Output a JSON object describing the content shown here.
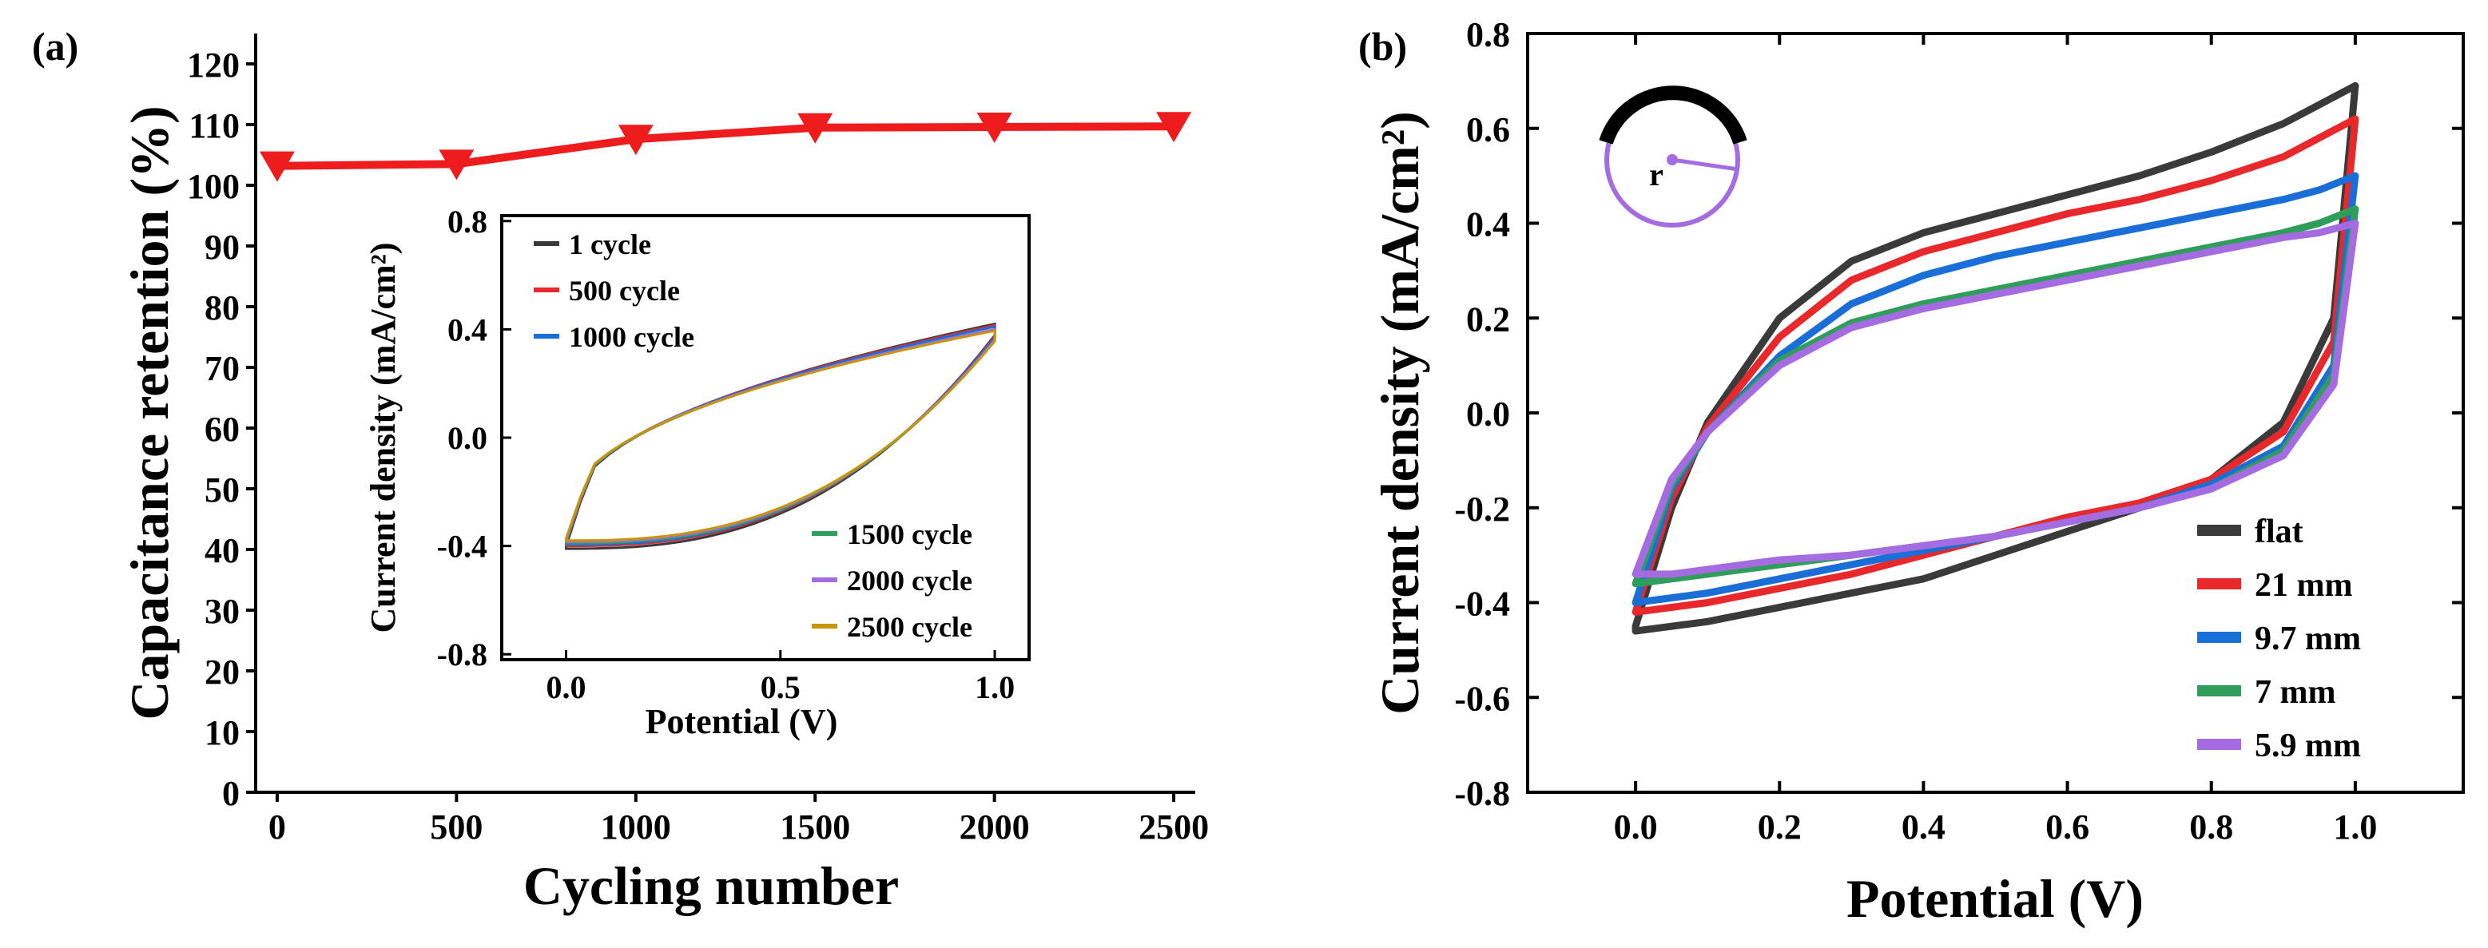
{
  "chart_data": [
    {
      "panel": "(a)",
      "type": "line",
      "xlabel": "Cycling number",
      "ylabel": "Capacitance retention (%)",
      "xlim": [
        -60,
        2560
      ],
      "ylim": [
        0,
        125
      ],
      "xticks": [
        "0",
        "500",
        "1000",
        "1500",
        "2000",
        "2500"
      ],
      "yticks": [
        "0",
        "10",
        "20",
        "30",
        "40",
        "50",
        "60",
        "70",
        "80",
        "90",
        "100",
        "110",
        "120"
      ],
      "color": "#ee1c1c",
      "marker": "down-triangle",
      "series": [
        {
          "name": "Capacitance retention",
          "x": [
            0,
            500,
            1000,
            1500,
            2000,
            2500
          ],
          "y": [
            103.2,
            103.5,
            107.6,
            109.5,
            109.6,
            109.7
          ]
        }
      ],
      "inset": {
        "type": "line",
        "xlabel": "Potential (V)",
        "ylabel": "Current density (mA/cm²)",
        "xlim": [
          -0.15,
          1.08
        ],
        "ylim": [
          -0.82,
          0.82
        ],
        "xticks": [
          "0.0",
          "0.5",
          "1.0"
        ],
        "yticks": [
          "-0.8",
          "-0.4",
          "0.0",
          "0.4",
          "0.8"
        ],
        "legend_top": [
          "1 cycle",
          "500 cycle",
          "1000 cycle"
        ],
        "legend_bottom": [
          "1500 cycle",
          "2000 cycle",
          "2500 cycle"
        ],
        "series": [
          {
            "name": "1 cycle",
            "color": "#3a3a3a",
            "vmax": 0.42,
            "vmin": -0.41
          },
          {
            "name": "500 cycle",
            "color": "#e8282a",
            "vmax": 0.415,
            "vmin": -0.4
          },
          {
            "name": "1000 cycle",
            "color": "#1a6ed8",
            "vmax": 0.41,
            "vmin": -0.395
          },
          {
            "name": "1500 cycle",
            "color": "#2e9e5a",
            "vmax": 0.4,
            "vmin": -0.39
          },
          {
            "name": "2000 cycle",
            "color": "#a56be0",
            "vmax": 0.4,
            "vmin": -0.385
          },
          {
            "name": "2500 cycle",
            "color": "#c8950a",
            "vmax": 0.395,
            "vmin": -0.38
          }
        ]
      }
    },
    {
      "panel": "(b)",
      "type": "line",
      "xlabel": "Potential (V)",
      "ylabel": "Current density (mA/cm²)",
      "xlim": [
        -0.15,
        1.15
      ],
      "ylim": [
        -0.8,
        0.8
      ],
      "xticks": [
        "0.0",
        "0.2",
        "0.4",
        "0.6",
        "0.8",
        "1.0"
      ],
      "yticks": [
        "-0.8",
        "-0.6",
        "-0.4",
        "-0.2",
        "0.0",
        "0.2",
        "0.4",
        "0.6",
        "0.8"
      ],
      "inset_label": "r",
      "series": [
        {
          "name": "flat",
          "color": "#3a3a3a",
          "x_up": [
            0.0,
            0.05,
            0.1,
            0.2,
            0.3,
            0.4,
            0.5,
            0.6,
            0.7,
            0.8,
            0.9,
            0.95,
            1.0
          ],
          "y_up": [
            -0.45,
            -0.2,
            -0.02,
            0.2,
            0.32,
            0.38,
            0.42,
            0.46,
            0.5,
            0.55,
            0.61,
            0.65,
            0.69
          ],
          "x_down": [
            1.0,
            0.97,
            0.9,
            0.8,
            0.7,
            0.6,
            0.5,
            0.4,
            0.3,
            0.2,
            0.1,
            0.05,
            0.0
          ],
          "y_down": [
            0.69,
            0.2,
            -0.02,
            -0.14,
            -0.2,
            -0.25,
            -0.3,
            -0.35,
            -0.38,
            -0.41,
            -0.44,
            -0.45,
            -0.46
          ]
        },
        {
          "name": "21 mm",
          "color": "#e8282a",
          "x_up": [
            0.0,
            0.05,
            0.1,
            0.2,
            0.3,
            0.4,
            0.5,
            0.6,
            0.7,
            0.8,
            0.9,
            0.95,
            1.0
          ],
          "y_up": [
            -0.42,
            -0.18,
            -0.03,
            0.16,
            0.28,
            0.34,
            0.38,
            0.42,
            0.45,
            0.49,
            0.54,
            0.58,
            0.62
          ],
          "x_down": [
            1.0,
            0.97,
            0.9,
            0.8,
            0.7,
            0.6,
            0.5,
            0.4,
            0.3,
            0.2,
            0.1,
            0.05,
            0.0
          ],
          "y_down": [
            0.62,
            0.15,
            -0.04,
            -0.14,
            -0.19,
            -0.22,
            -0.26,
            -0.3,
            -0.34,
            -0.37,
            -0.4,
            -0.41,
            -0.42
          ]
        },
        {
          "name": "9.7 mm",
          "color": "#1a6ed8",
          "x_up": [
            0.0,
            0.05,
            0.1,
            0.2,
            0.3,
            0.4,
            0.5,
            0.6,
            0.7,
            0.8,
            0.9,
            0.95,
            1.0
          ],
          "y_up": [
            -0.4,
            -0.16,
            -0.04,
            0.12,
            0.23,
            0.29,
            0.33,
            0.36,
            0.39,
            0.42,
            0.45,
            0.47,
            0.5
          ],
          "x_down": [
            1.0,
            0.97,
            0.9,
            0.8,
            0.7,
            0.6,
            0.5,
            0.4,
            0.3,
            0.2,
            0.1,
            0.05,
            0.0
          ],
          "y_down": [
            0.5,
            0.1,
            -0.07,
            -0.15,
            -0.2,
            -0.23,
            -0.26,
            -0.29,
            -0.32,
            -0.35,
            -0.38,
            -0.39,
            -0.4
          ]
        },
        {
          "name": "7 mm",
          "color": "#2e9e5a",
          "x_up": [
            0.0,
            0.05,
            0.1,
            0.2,
            0.3,
            0.4,
            0.5,
            0.6,
            0.7,
            0.8,
            0.9,
            0.95,
            1.0
          ],
          "y_up": [
            -0.36,
            -0.15,
            -0.04,
            0.11,
            0.19,
            0.23,
            0.26,
            0.29,
            0.32,
            0.35,
            0.38,
            0.4,
            0.43
          ],
          "x_down": [
            1.0,
            0.97,
            0.9,
            0.8,
            0.7,
            0.6,
            0.5,
            0.4,
            0.3,
            0.2,
            0.1,
            0.05,
            0.0
          ],
          "y_down": [
            0.43,
            0.08,
            -0.08,
            -0.16,
            -0.2,
            -0.23,
            -0.26,
            -0.28,
            -0.3,
            -0.32,
            -0.34,
            -0.35,
            -0.36
          ]
        },
        {
          "name": "5.9 mm",
          "color": "#a56be0",
          "x_up": [
            0.0,
            0.05,
            0.1,
            0.2,
            0.3,
            0.4,
            0.5,
            0.6,
            0.7,
            0.8,
            0.9,
            0.95,
            1.0
          ],
          "y_up": [
            -0.34,
            -0.14,
            -0.04,
            0.1,
            0.18,
            0.22,
            0.25,
            0.28,
            0.31,
            0.34,
            0.37,
            0.38,
            0.4
          ],
          "x_down": [
            1.0,
            0.97,
            0.9,
            0.8,
            0.7,
            0.6,
            0.5,
            0.4,
            0.3,
            0.2,
            0.1,
            0.05,
            0.0
          ],
          "y_down": [
            0.4,
            0.06,
            -0.09,
            -0.16,
            -0.2,
            -0.23,
            -0.26,
            -0.28,
            -0.3,
            -0.31,
            -0.33,
            -0.34,
            -0.34
          ]
        }
      ]
    }
  ]
}
